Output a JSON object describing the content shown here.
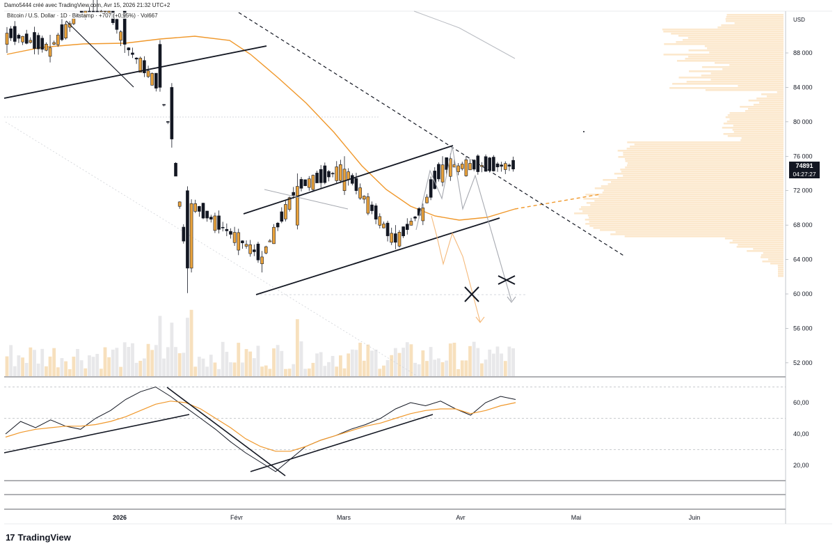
{
  "header": {
    "author_line": "Damo5444 créé avec TradingView.com, Avr 15, 2026 21:32 UTC+2",
    "symbol_line": "Bitcoin / U.S. Dollar · 1D · Bitstamp · +707 (+0,95%) · Vol667"
  },
  "price_axis": {
    "currency": "USD",
    "ticks": [
      {
        "label": "88 000",
        "value": 88000
      },
      {
        "label": "84 000",
        "value": 84000
      },
      {
        "label": "80 000",
        "value": 80000
      },
      {
        "label": "76 000",
        "value": 76000
      },
      {
        "label": "72 000",
        "value": 72000
      },
      {
        "label": "68 000",
        "value": 68000
      },
      {
        "label": "64 000",
        "value": 64000
      },
      {
        "label": "60 000",
        "value": 60000
      },
      {
        "label": "56 000",
        "value": 56000
      },
      {
        "label": "52 000",
        "value": 52000
      }
    ],
    "last_price": "74891",
    "countdown": "04:27:27"
  },
  "rsi_axis": {
    "ticks": [
      {
        "label": "60,00",
        "value": 60
      },
      {
        "label": "40,00",
        "value": 40
      },
      {
        "label": "20,00",
        "value": 20
      }
    ]
  },
  "time_axis": {
    "labels": [
      "2026",
      "Févr",
      "Mars",
      "Avr",
      "Mai",
      "Juin"
    ]
  },
  "footer": {
    "logo_text": "TradingView",
    "logo_mark": "17"
  },
  "colors": {
    "up": "#e9a23b",
    "down": "#131722",
    "ma": "#f0982b",
    "trendline": "#131722",
    "volume_up": "#f7e0bd",
    "volume_down": "#e8e8ea",
    "volume_profile": "#fbe4c4"
  },
  "chart_data": [
    {
      "type": "candlestick",
      "title": "",
      "ylabel": "USD",
      "ylim": [
        50500,
        91500
      ],
      "x_axis": [
        "2026",
        "Févr",
        "Mars",
        "Avr",
        "Mai",
        "Juin"
      ],
      "ohlc_approx": [
        {
          "date": "2025-12-21",
          "open": 89000,
          "high": 91000,
          "low": 88000,
          "close": 90300
        },
        {
          "date": "2026-01-01",
          "open": 87600,
          "high": 90100,
          "low": 86900,
          "close": 88600
        },
        {
          "date": "2026-01-14",
          "open": 94000,
          "high": 97500,
          "low": 93000,
          "close": 95500
        },
        {
          "date": "2026-01-20",
          "open": 93000,
          "high": 93500,
          "low": 88000,
          "close": 89000
        },
        {
          "date": "2026-01-29",
          "open": 89000,
          "high": 89500,
          "low": 83500,
          "close": 84000
        },
        {
          "date": "2026-02-01",
          "open": 84000,
          "high": 84500,
          "low": 77000,
          "close": 78000
        },
        {
          "date": "2026-02-05",
          "open": 72000,
          "high": 72500,
          "low": 60100,
          "close": 63000
        },
        {
          "date": "2026-02-06",
          "open": 63000,
          "high": 71000,
          "low": 62500,
          "close": 70500
        },
        {
          "date": "2026-02-24",
          "open": 63500,
          "high": 65000,
          "low": 62500,
          "close": 64300
        },
        {
          "date": "2026-03-05",
          "open": 68000,
          "high": 74000,
          "low": 67500,
          "close": 72500
        },
        {
          "date": "2026-03-17",
          "open": 72000,
          "high": 76000,
          "low": 71500,
          "close": 74500
        },
        {
          "date": "2026-03-30",
          "open": 67000,
          "high": 68000,
          "low": 65200,
          "close": 66000
        },
        {
          "date": "2026-04-06",
          "open": 68500,
          "high": 70500,
          "low": 68000,
          "close": 70000
        },
        {
          "date": "2026-04-11",
          "open": 73000,
          "high": 76000,
          "low": 72500,
          "close": 75000
        },
        {
          "date": "2026-04-15",
          "open": 74184,
          "high": 75200,
          "low": 73800,
          "close": 74891
        }
      ],
      "moving_average": {
        "last": 69800
      },
      "annotations": {
        "channel_top": [
          [
            69500,
            "2026-02-05"
          ],
          [
            77200,
            "2026-03-31"
          ]
        ],
        "channel_bottom": [
          [
            60100,
            "2026-02-05"
          ],
          [
            69000,
            "2026-04-10"
          ]
        ],
        "descending_resistance": [
          [
            91000,
            "2026-01-28"
          ],
          [
            64000,
            "2026-05-02"
          ]
        ],
        "support_level": 60100
      }
    },
    {
      "type": "line",
      "title": "",
      "ylim": [
        5,
        75
      ],
      "series": [
        {
          "values": [
            40,
            48,
            44,
            49,
            45,
            43,
            50,
            55,
            62,
            67,
            70,
            64,
            57,
            50,
            43,
            35,
            28,
            22,
            16,
            24,
            32,
            36,
            39,
            43,
            46,
            50,
            56,
            60,
            58,
            61,
            56,
            52,
            60,
            64,
            62
          ]
        },
        {
          "values": [
            38,
            41,
            43,
            44,
            45,
            45,
            46,
            48,
            51,
            55,
            59,
            61,
            60,
            56,
            50,
            44,
            37,
            32,
            29,
            29,
            32,
            36,
            39,
            42,
            45,
            47,
            50,
            53,
            55,
            56,
            56,
            53,
            55,
            58,
            60
          ]
        }
      ]
    }
  ]
}
